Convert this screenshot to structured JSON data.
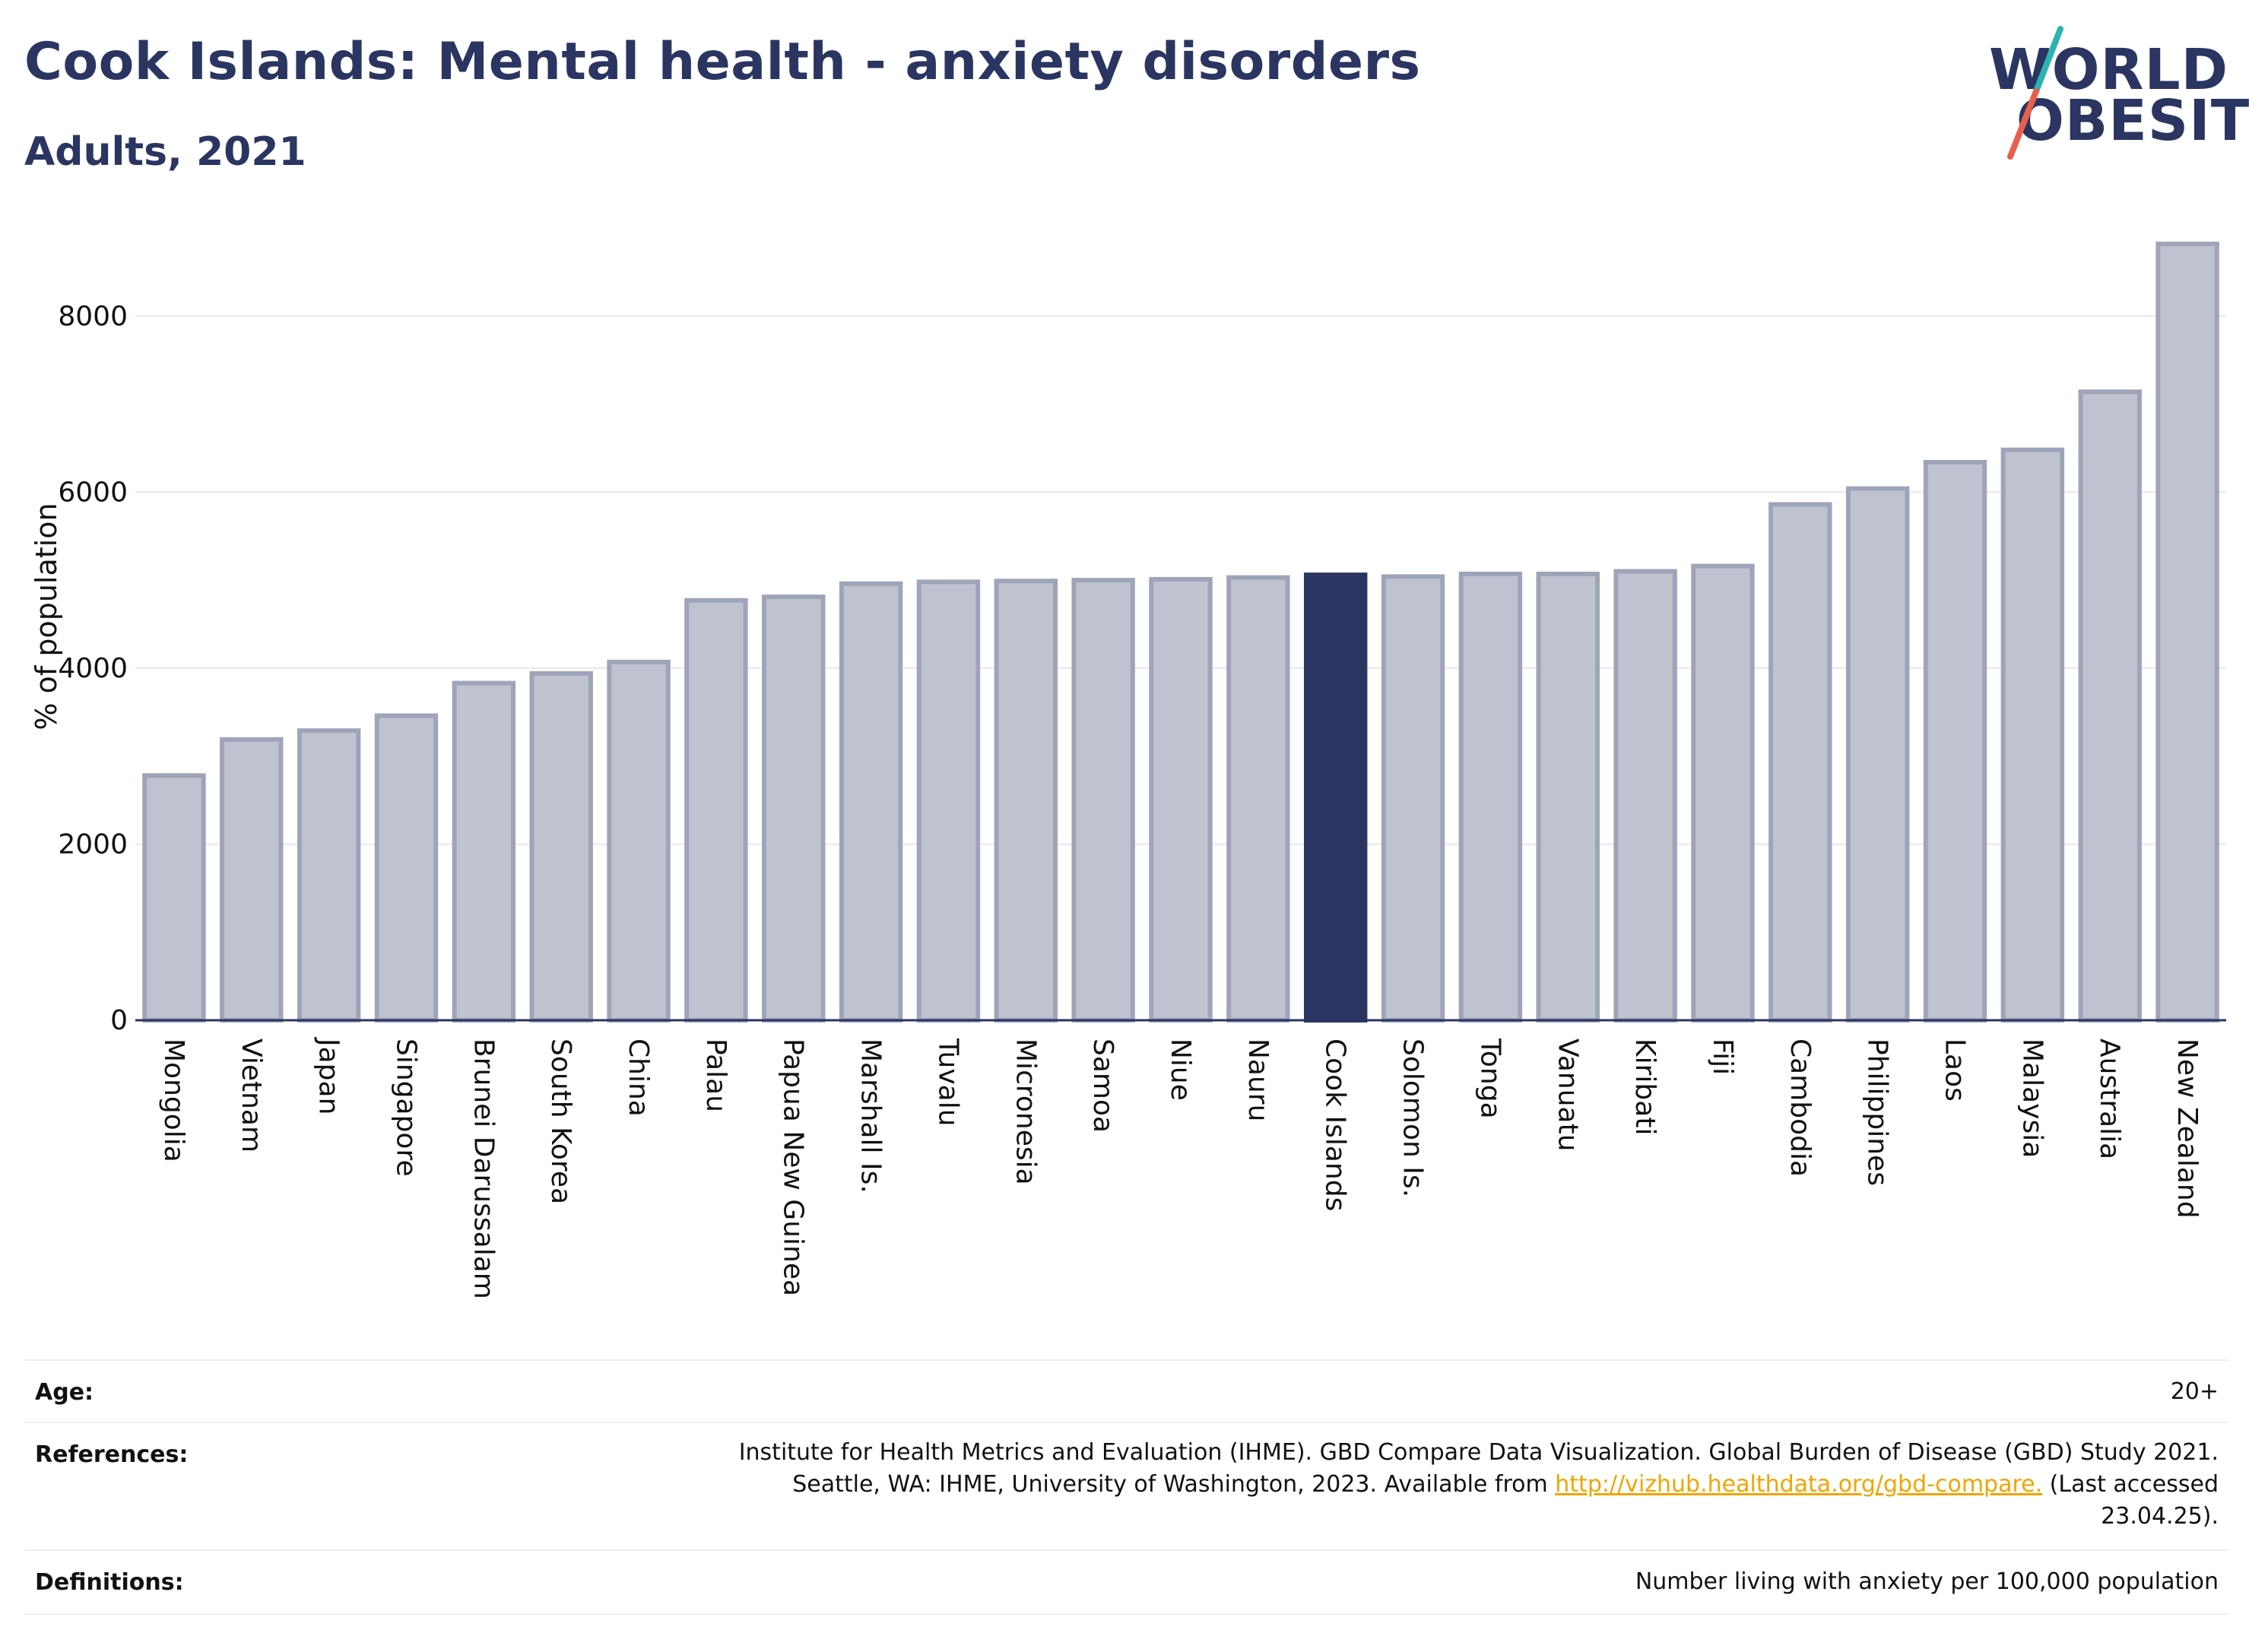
{
  "header": {
    "title": "Cook Islands: Mental health - anxiety disorders",
    "subtitle": "Adults, 2021"
  },
  "logo": {
    "line1": "WORLD",
    "line2": "OBESITY",
    "slash_colors": [
      "#2bb3b1",
      "#e8604c"
    ]
  },
  "colors": {
    "bar": "#bfc3d0",
    "bar_border": "#9ea4b9",
    "highlight": "#2a3561",
    "grid": "#e6e8ee",
    "axis": "#2a3561"
  },
  "chart_data": {
    "type": "bar",
    "ylabel": "% of population",
    "ylim": [
      0,
      9000
    ],
    "yticks": [
      0,
      2000,
      4000,
      6000,
      8000
    ],
    "grid": true,
    "highlight": "Cook Islands",
    "categories": [
      "Mongolia",
      "Vietnam",
      "Japan",
      "Singapore",
      "Brunei Darussalam",
      "South Korea",
      "China",
      "Palau",
      "Papua New Guinea",
      "Marshall Is.",
      "Tuvalu",
      "Micronesia",
      "Samoa",
      "Niue",
      "Nauru",
      "Cook Islands",
      "Solomon Is.",
      "Tonga",
      "Vanuatu",
      "Kiribati",
      "Fiji",
      "Cambodia",
      "Philippines",
      "Laos",
      "Malaysia",
      "Australia",
      "New Zealand"
    ],
    "values": [
      2780,
      3190,
      3290,
      3460,
      3830,
      3940,
      4070,
      4770,
      4810,
      4960,
      4980,
      4990,
      5000,
      5010,
      5030,
      5060,
      5040,
      5070,
      5070,
      5100,
      5160,
      5860,
      6040,
      6340,
      6480,
      7140,
      8820
    ]
  },
  "meta": {
    "age_label": "Age:",
    "age_value": "20+",
    "references_label": "References:",
    "references_line1": "Institute for Health Metrics and Evaluation (IHME). GBD Compare Data Visualization. Global Burden of Disease (GBD) Study 2021.",
    "references_line2_pre": "Seattle, WA: IHME, University of Washington, 2023. Available from ",
    "references_link": "http://vizhub.healthdata.org/gbd-compare.",
    "references_line2_post": " (Last accessed",
    "references_line3": "23.04.25).",
    "definitions_label": "Definitions:",
    "definitions_value": "Number living with anxiety per 100,000 population"
  }
}
